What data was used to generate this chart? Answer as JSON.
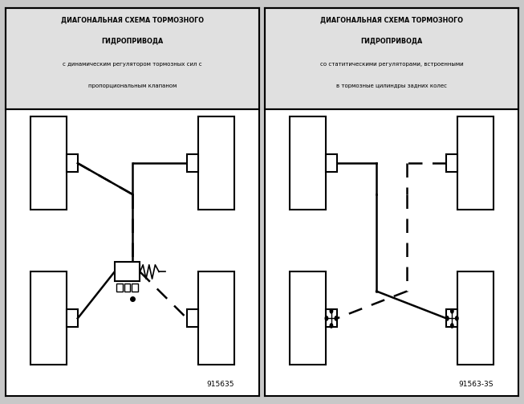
{
  "bg_color": "#c8c8c8",
  "panel_bg": "#ffffff",
  "title_bg": "#e0e0e0",
  "border_color": "#000000",
  "title1_line1": "ДИАГОНАЛЬНАЯ СХЕМА ТОРМОЗНОГО",
  "title1_line2": "ГИДРОПРИВОДА",
  "title1_line3": "с динамическим регулятором тормозных сил с",
  "title1_line4": "пропорциональным клапаном",
  "title2_line1": "ДИАГОНАЛЬНАЯ СХЕМА ТОРМОЗНОГО",
  "title2_line2": "ГИДРОПРИВОДА",
  "title2_line3": "со статитическими регуляторами, встроенными",
  "title2_line4": "в тормозные цилиндры задних колес",
  "code1": "915635",
  "code2": "91563-3S"
}
